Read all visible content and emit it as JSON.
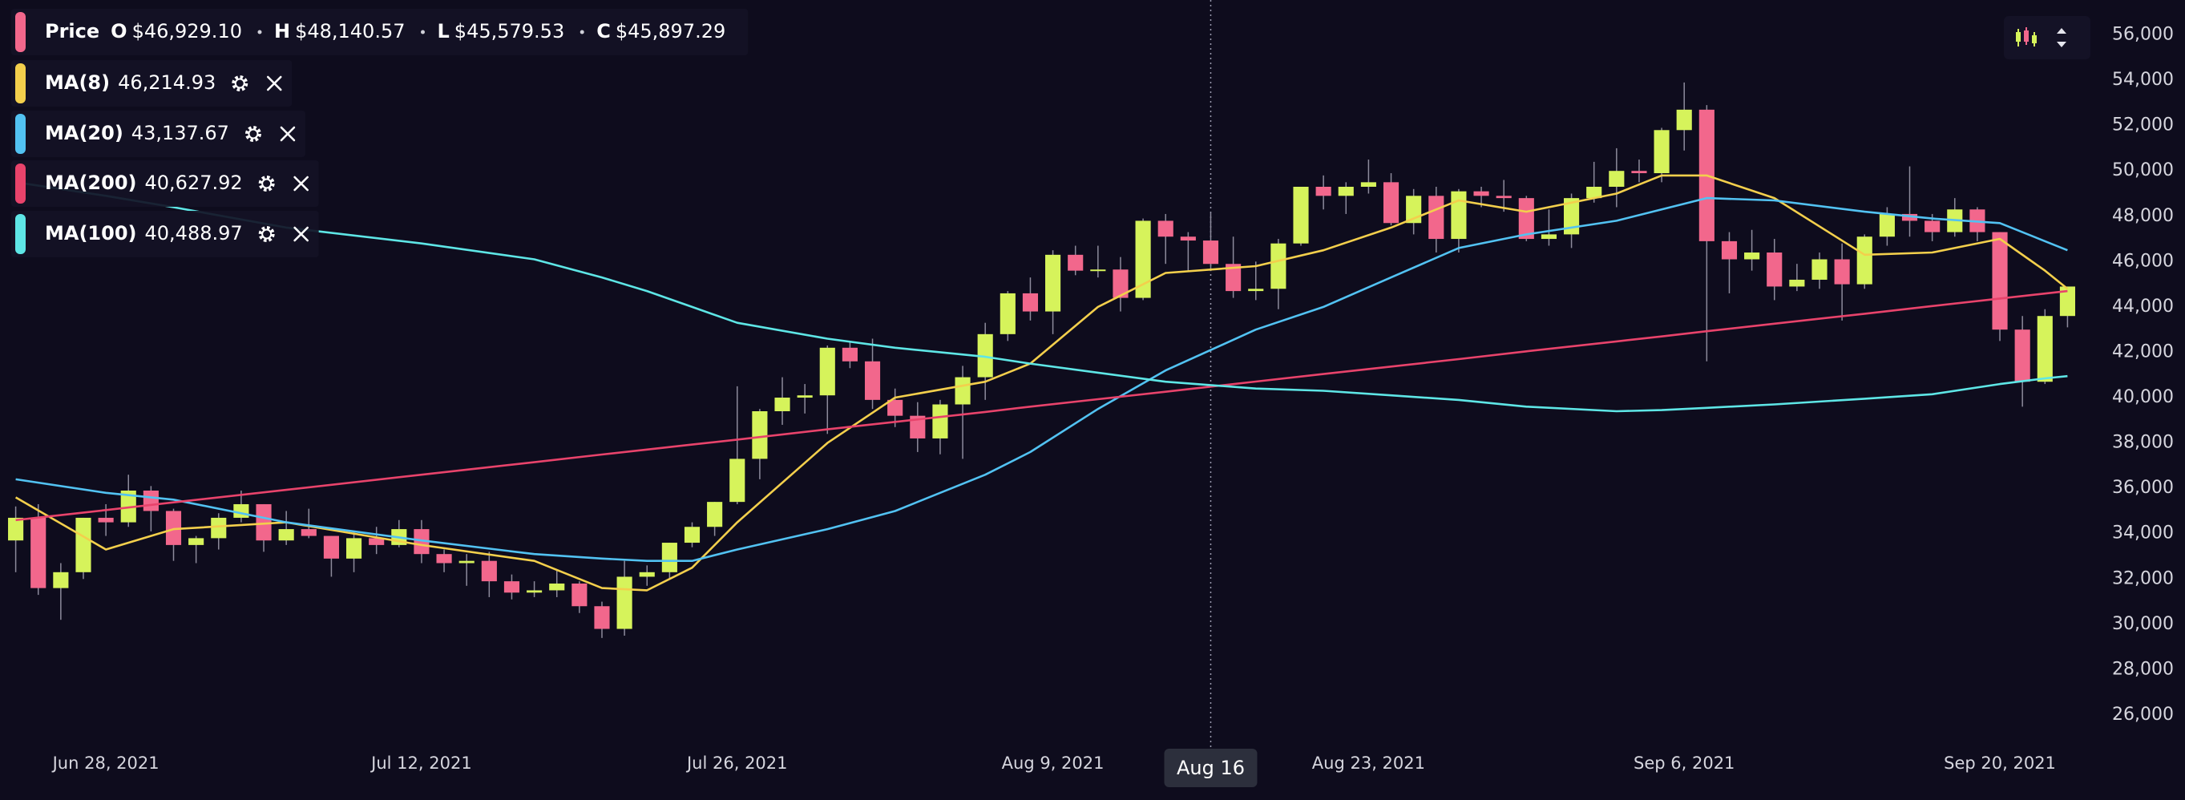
{
  "chart_data": {
    "type": "candlestick",
    "x": [
      "2021-06-24",
      "2021-06-25",
      "2021-06-26",
      "2021-06-27",
      "2021-06-28",
      "2021-06-29",
      "2021-06-30",
      "2021-07-01",
      "2021-07-02",
      "2021-07-03",
      "2021-07-04",
      "2021-07-05",
      "2021-07-06",
      "2021-07-07",
      "2021-07-08",
      "2021-07-09",
      "2021-07-10",
      "2021-07-11",
      "2021-07-12",
      "2021-07-13",
      "2021-07-14",
      "2021-07-15",
      "2021-07-16",
      "2021-07-17",
      "2021-07-18",
      "2021-07-19",
      "2021-07-20",
      "2021-07-21",
      "2021-07-22",
      "2021-07-23",
      "2021-07-24",
      "2021-07-25",
      "2021-07-26",
      "2021-07-27",
      "2021-07-28",
      "2021-07-29",
      "2021-07-30",
      "2021-07-31",
      "2021-08-01",
      "2021-08-02",
      "2021-08-03",
      "2021-08-04",
      "2021-08-05",
      "2021-08-06",
      "2021-08-07",
      "2021-08-08",
      "2021-08-09",
      "2021-08-10",
      "2021-08-11",
      "2021-08-12",
      "2021-08-13",
      "2021-08-14",
      "2021-08-15",
      "2021-08-16",
      "2021-08-17",
      "2021-08-18",
      "2021-08-19",
      "2021-08-20",
      "2021-08-21",
      "2021-08-22",
      "2021-08-23",
      "2021-08-24",
      "2021-08-25",
      "2021-08-26",
      "2021-08-27",
      "2021-08-28",
      "2021-08-29",
      "2021-08-30",
      "2021-08-31",
      "2021-09-01",
      "2021-09-02",
      "2021-09-03",
      "2021-09-04",
      "2021-09-05",
      "2021-09-06",
      "2021-09-07",
      "2021-09-08",
      "2021-09-09",
      "2021-09-10",
      "2021-09-11",
      "2021-09-12",
      "2021-09-13",
      "2021-09-14",
      "2021-09-15",
      "2021-09-16",
      "2021-09-17",
      "2021-09-18",
      "2021-09-19",
      "2021-09-20",
      "2021-09-21",
      "2021-09-22",
      "2021-09-23"
    ],
    "open": [
      33700,
      34700,
      31600,
      32300,
      34700,
      34500,
      35900,
      35000,
      33500,
      33800,
      34700,
      35300,
      33700,
      34200,
      33900,
      32900,
      33800,
      33500,
      34200,
      33100,
      32700,
      32800,
      31900,
      31400,
      31500,
      31800,
      30800,
      29800,
      32100,
      32300,
      33600,
      34300,
      35400,
      37300,
      39400,
      40000,
      40100,
      42200,
      41600,
      39900,
      39200,
      38200,
      39700,
      40900,
      42800,
      44600,
      43800,
      46300,
      45600,
      45650,
      44400,
      47800,
      47100,
      46929.1,
      45897,
      44700,
      44800,
      46800,
      49300,
      48900,
      49300,
      49500,
      47700,
      48900,
      47000,
      49100,
      48900,
      48800,
      47000,
      47200,
      48800,
      49300,
      50000,
      49900,
      51800,
      52700,
      46900,
      46100,
      46400,
      44900,
      45200,
      46100,
      45000,
      47100,
      48100,
      47800,
      47300,
      48300,
      47300,
      43000,
      40700,
      43600
    ],
    "high": [
      35200,
      35300,
      32700,
      34700,
      35300,
      36600,
      36100,
      35100,
      33900,
      34900,
      35900,
      35300,
      35000,
      35100,
      33900,
      34100,
      34300,
      34600,
      34600,
      33300,
      33100,
      33200,
      32200,
      31900,
      32400,
      31900,
      31000,
      32800,
      32600,
      33600,
      34500,
      35400,
      40500,
      39500,
      40900,
      40600,
      42300,
      42500,
      42600,
      40400,
      39800,
      39900,
      41400,
      43300,
      44700,
      45300,
      46500,
      46700,
      46700,
      46200,
      47900,
      48100,
      47300,
      48140.57,
      47100,
      46000,
      47000,
      49300,
      49800,
      49500,
      50500,
      49900,
      49200,
      49300,
      49200,
      49300,
      49600,
      48900,
      48300,
      49000,
      50400,
      51000,
      50500,
      51900,
      53900,
      52900,
      47300,
      47400,
      47000,
      45900,
      46400,
      46800,
      47200,
      48400,
      50200,
      48100,
      48800,
      48400,
      47300,
      43600,
      43900,
      44900
    ],
    "low": [
      32300,
      31300,
      30200,
      32000,
      33900,
      34300,
      34100,
      32800,
      32700,
      33300,
      34500,
      33200,
      33500,
      33800,
      32100,
      32300,
      33100,
      33400,
      32700,
      32300,
      31700,
      31200,
      31100,
      31200,
      31200,
      30500,
      29400,
      29500,
      31700,
      32000,
      33400,
      33900,
      35300,
      36400,
      38800,
      39300,
      38400,
      41300,
      39500,
      38700,
      37600,
      37500,
      37300,
      39900,
      42500,
      43400,
      42800,
      45400,
      45300,
      43800,
      44300,
      45900,
      45600,
      45579.53,
      44400,
      44300,
      43900,
      46700,
      48300,
      48100,
      49000,
      47600,
      47200,
      46400,
      46400,
      48400,
      48200,
      46900,
      46700,
      46600,
      48600,
      48400,
      49500,
      49500,
      50900,
      41600,
      44600,
      45600,
      44300,
      44700,
      44800,
      43400,
      44800,
      46700,
      47100,
      46900,
      47100,
      46900,
      42500,
      39600,
      40600,
      43100
    ],
    "close": [
      34700,
      31600,
      32300,
      34700,
      34500,
      35900,
      35000,
      33500,
      33800,
      34700,
      35300,
      33700,
      34200,
      33900,
      32900,
      33800,
      33500,
      34200,
      33100,
      32700,
      32800,
      31900,
      31400,
      31500,
      31800,
      30800,
      29800,
      32100,
      32300,
      33600,
      34300,
      35400,
      37300,
      39400,
      40000,
      40100,
      42200,
      41600,
      39900,
      39200,
      38200,
      39700,
      40900,
      42800,
      44600,
      43800,
      46300,
      45600,
      45650,
      44400,
      47800,
      47100,
      46929.1,
      45897.29,
      44700,
      44800,
      46800,
      49300,
      48900,
      49300,
      49500,
      47700,
      48900,
      47000,
      49100,
      48900,
      48800,
      47000,
      47200,
      48800,
      49300,
      50000,
      49900,
      51800,
      52700,
      46900,
      46100,
      46400,
      44900,
      45200,
      46100,
      45000,
      47100,
      48100,
      47800,
      47300,
      48300,
      47300,
      43000,
      40700,
      43600,
      44900
    ],
    "up_color": "#d6f35b",
    "down_color": "#f2678c",
    "series": [
      {
        "name": "MA(8)",
        "color": "#f3cf4c",
        "legend_value": "46,214.93",
        "x": [
          "2021-06-24",
          "2021-06-28",
          "2021-07-01",
          "2021-07-06",
          "2021-07-12",
          "2021-07-17",
          "2021-07-20",
          "2021-07-22",
          "2021-07-24",
          "2021-07-26",
          "2021-07-30",
          "2021-08-02",
          "2021-08-06",
          "2021-08-08",
          "2021-08-11",
          "2021-08-14",
          "2021-08-18",
          "2021-08-21",
          "2021-08-24",
          "2021-08-27",
          "2021-08-30",
          "2021-09-03",
          "2021-09-05",
          "2021-09-07",
          "2021-09-10",
          "2021-09-14",
          "2021-09-17",
          "2021-09-20",
          "2021-09-22",
          "2021-09-23"
        ],
        "values": [
          35600,
          33300,
          34200,
          34500,
          33500,
          32800,
          31600,
          31500,
          32500,
          34500,
          38000,
          40000,
          40700,
          41500,
          44000,
          45500,
          45800,
          46500,
          47500,
          48700,
          48200,
          49000,
          49800,
          49800,
          48800,
          46300,
          46400,
          47000,
          45600,
          44800
        ]
      },
      {
        "name": "MA(20)",
        "color": "#52c2f2",
        "legend_value": "43,137.67",
        "x": [
          "2021-06-24",
          "2021-06-28",
          "2021-07-01",
          "2021-07-06",
          "2021-07-12",
          "2021-07-17",
          "2021-07-20",
          "2021-07-22",
          "2021-07-24",
          "2021-07-26",
          "2021-07-30",
          "2021-08-02",
          "2021-08-06",
          "2021-08-08",
          "2021-08-11",
          "2021-08-14",
          "2021-08-18",
          "2021-08-21",
          "2021-08-24",
          "2021-08-27",
          "2021-08-30",
          "2021-09-03",
          "2021-09-05",
          "2021-09-07",
          "2021-09-10",
          "2021-09-14",
          "2021-09-17",
          "2021-09-20",
          "2021-09-22",
          "2021-09-23"
        ],
        "values": [
          36400,
          35800,
          35500,
          34500,
          33700,
          33100,
          32900,
          32800,
          32800,
          33300,
          34200,
          35000,
          36600,
          37600,
          39500,
          41200,
          43000,
          44000,
          45300,
          46600,
          47200,
          47800,
          48300,
          48800,
          48700,
          48200,
          47900,
          47700,
          46900,
          46500
        ]
      },
      {
        "name": "MA(200)",
        "color": "#e8436b",
        "legend_value": "40,627.92",
        "x": [
          "2021-06-24",
          "2021-06-28",
          "2021-07-01",
          "2021-07-06",
          "2021-07-12",
          "2021-07-17",
          "2021-07-20",
          "2021-07-22",
          "2021-07-24",
          "2021-07-26",
          "2021-07-30",
          "2021-08-02",
          "2021-08-06",
          "2021-08-08",
          "2021-08-11",
          "2021-08-14",
          "2021-08-18",
          "2021-08-21",
          "2021-08-24",
          "2021-08-27",
          "2021-08-30",
          "2021-09-03",
          "2021-09-05",
          "2021-09-07",
          "2021-09-10",
          "2021-09-14",
          "2021-09-17",
          "2021-09-20",
          "2021-09-22",
          "2021-09-23"
        ],
        "values": [
          34600,
          35040,
          35380,
          35930,
          36600,
          37150,
          37490,
          37710,
          37930,
          38150,
          38600,
          38930,
          39370,
          39600,
          39930,
          40260,
          40710,
          41040,
          41370,
          41700,
          42040,
          42480,
          42700,
          42930,
          43260,
          43700,
          44040,
          44370,
          44590,
          44700
        ]
      },
      {
        "name": "MA(100)",
        "color": "#5ee6e6",
        "legend_value": "40,488.97",
        "x": [
          "2021-06-24",
          "2021-06-28",
          "2021-07-01",
          "2021-07-06",
          "2021-07-12",
          "2021-07-17",
          "2021-07-20",
          "2021-07-22",
          "2021-07-24",
          "2021-07-26",
          "2021-07-30",
          "2021-08-02",
          "2021-08-06",
          "2021-08-08",
          "2021-08-11",
          "2021-08-14",
          "2021-08-18",
          "2021-08-21",
          "2021-08-24",
          "2021-08-27",
          "2021-08-30",
          "2021-09-03",
          "2021-09-05",
          "2021-09-07",
          "2021-09-10",
          "2021-09-14",
          "2021-09-17",
          "2021-09-20",
          "2021-09-22",
          "2021-09-23"
        ],
        "values": [
          49500,
          48900,
          48400,
          47500,
          46800,
          46100,
          45300,
          44700,
          44000,
          43300,
          42600,
          42200,
          41800,
          41500,
          41100,
          40700,
          40400,
          40300,
          40100,
          39900,
          39600,
          39400,
          39450,
          39550,
          39700,
          39950,
          40150,
          40600,
          40850,
          40950
        ]
      }
    ],
    "price_legend": {
      "name": "Price",
      "items": [
        {
          "key": "O",
          "value": "$46,929.10"
        },
        {
          "key": "H",
          "value": "$48,140.57"
        },
        {
          "key": "L",
          "value": "$45,579.53"
        },
        {
          "key": "C",
          "value": "$45,897.29"
        }
      ]
    },
    "crosshair": {
      "x": "2021-08-16",
      "label": "Aug 16"
    },
    "ylim": [
      25000,
      57000
    ],
    "yticks": [
      {
        "value": 26000,
        "label": "26,000"
      },
      {
        "value": 28000,
        "label": "28,000"
      },
      {
        "value": 30000,
        "label": "30,000"
      },
      {
        "value": 32000,
        "label": "32,000"
      },
      {
        "value": 34000,
        "label": "34,000"
      },
      {
        "value": 36000,
        "label": "36,000"
      },
      {
        "value": 38000,
        "label": "38,000"
      },
      {
        "value": 40000,
        "label": "40,000"
      },
      {
        "value": 42000,
        "label": "42,000"
      },
      {
        "value": 44000,
        "label": "44,000"
      },
      {
        "value": 46000,
        "label": "46,000"
      },
      {
        "value": 48000,
        "label": "48,000"
      },
      {
        "value": 50000,
        "label": "50,000"
      },
      {
        "value": 52000,
        "label": "52,000"
      },
      {
        "value": 54000,
        "label": "54,000"
      },
      {
        "value": 56000,
        "label": "56,000"
      }
    ],
    "xticks": [
      {
        "value": "2021-06-28",
        "label": "Jun 28, 2021"
      },
      {
        "value": "2021-07-12",
        "label": "Jul 12, 2021"
      },
      {
        "value": "2021-07-26",
        "label": "Jul 26, 2021"
      },
      {
        "value": "2021-08-09",
        "label": "Aug 9, 2021"
      },
      {
        "value": "2021-08-23",
        "label": "Aug 23, 2021"
      },
      {
        "value": "2021-09-06",
        "label": "Sep 6, 2021"
      },
      {
        "value": "2021-09-20",
        "label": "Sep 20, 2021"
      }
    ],
    "grid": true
  }
}
